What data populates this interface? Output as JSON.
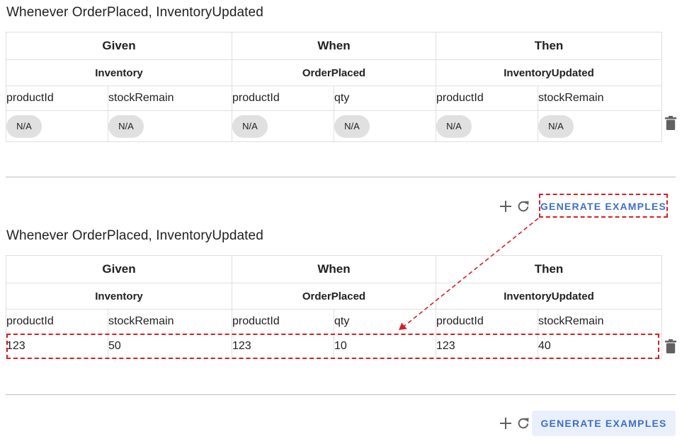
{
  "scenarios": [
    {
      "title": "Whenever OrderPlaced, InventoryUpdated",
      "groups": {
        "given": "Given",
        "when": "When",
        "then": "Then"
      },
      "aggregates": {
        "given": "Inventory",
        "when": "OrderPlaced",
        "then": "InventoryUpdated"
      },
      "fields": {
        "g1": "productId",
        "g2": "stockRemain",
        "w1": "productId",
        "w2": "qty",
        "t1": "productId",
        "t2": "stockRemain"
      },
      "row": {
        "g1": "N/A",
        "g2": "N/A",
        "w1": "N/A",
        "w2": "N/A",
        "t1": "N/A",
        "t2": "N/A"
      },
      "actions": {
        "generate_label": "GENERATE EXAMPLES"
      }
    },
    {
      "title": "Whenever OrderPlaced, InventoryUpdated",
      "groups": {
        "given": "Given",
        "when": "When",
        "then": "Then"
      },
      "aggregates": {
        "given": "Inventory",
        "when": "OrderPlaced",
        "then": "InventoryUpdated"
      },
      "fields": {
        "g1": "productId",
        "g2": "stockRemain",
        "w1": "productId",
        "w2": "qty",
        "t1": "productId",
        "t2": "stockRemain"
      },
      "row": {
        "g1": "123",
        "g2": "50",
        "w1": "123",
        "w2": "10",
        "t1": "123",
        "t2": "40"
      },
      "actions": {
        "generate_label": "GENERATE EXAMPLES"
      }
    }
  ],
  "icons": {
    "add": "plus-icon",
    "refresh": "refresh-icon",
    "delete": "trash-icon"
  },
  "colors": {
    "accent": "#3f6fc6",
    "annotation": "#d32027",
    "chip": "#e0e0e0",
    "button_bg": "#e9f0fb"
  }
}
